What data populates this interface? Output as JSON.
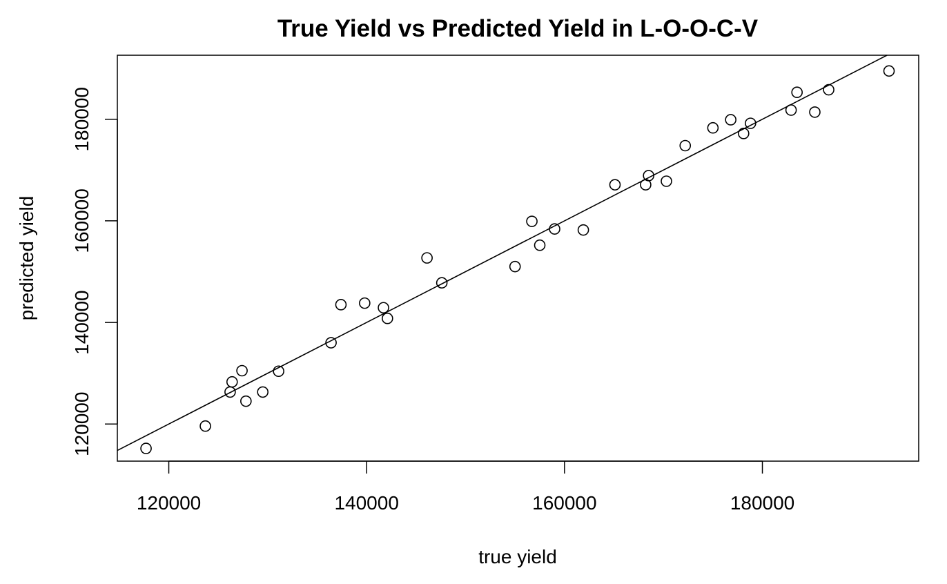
{
  "chart_data": {
    "type": "scatter",
    "title": "True Yield vs Predicted Yield in L-O-O-C-V",
    "xlabel": "true yield",
    "ylabel": "predicted yield",
    "xlim": [
      114800,
      195800
    ],
    "ylim": [
      112700,
      192600
    ],
    "x_ticks": [
      120000,
      140000,
      160000,
      180000
    ],
    "x_tick_labels": [
      "120000",
      "140000",
      "160000",
      "180000"
    ],
    "y_ticks": [
      120000,
      140000,
      160000,
      180000
    ],
    "y_tick_labels": [
      "120000",
      "140000",
      "160000",
      "180000"
    ],
    "grid": false,
    "reference_line": {
      "type": "identity",
      "slope": 1,
      "intercept": 0
    },
    "series": [
      {
        "marker": "open-circle",
        "color": "#000000",
        "points": [
          {
            "x": 117700,
            "y": 115200
          },
          {
            "x": 123700,
            "y": 119600
          },
          {
            "x": 126200,
            "y": 126300
          },
          {
            "x": 126400,
            "y": 128300
          },
          {
            "x": 127400,
            "y": 130500
          },
          {
            "x": 127800,
            "y": 124500
          },
          {
            "x": 129500,
            "y": 126300
          },
          {
            "x": 131100,
            "y": 130400
          },
          {
            "x": 136400,
            "y": 136000
          },
          {
            "x": 137400,
            "y": 143500
          },
          {
            "x": 139800,
            "y": 143800
          },
          {
            "x": 141700,
            "y": 142900
          },
          {
            "x": 142100,
            "y": 140800
          },
          {
            "x": 146100,
            "y": 152700
          },
          {
            "x": 147600,
            "y": 147800
          },
          {
            "x": 155000,
            "y": 151000
          },
          {
            "x": 156700,
            "y": 159900
          },
          {
            "x": 157500,
            "y": 155200
          },
          {
            "x": 159000,
            "y": 158400
          },
          {
            "x": 161900,
            "y": 158200
          },
          {
            "x": 165100,
            "y": 167100
          },
          {
            "x": 168200,
            "y": 167100
          },
          {
            "x": 168500,
            "y": 168900
          },
          {
            "x": 170300,
            "y": 167800
          },
          {
            "x": 172200,
            "y": 174800
          },
          {
            "x": 175000,
            "y": 178300
          },
          {
            "x": 176800,
            "y": 179900
          },
          {
            "x": 178100,
            "y": 177200
          },
          {
            "x": 178800,
            "y": 179200
          },
          {
            "x": 182900,
            "y": 181800
          },
          {
            "x": 183500,
            "y": 185300
          },
          {
            "x": 185300,
            "y": 181400
          },
          {
            "x": 186700,
            "y": 185800
          },
          {
            "x": 192800,
            "y": 189500
          }
        ]
      }
    ]
  }
}
